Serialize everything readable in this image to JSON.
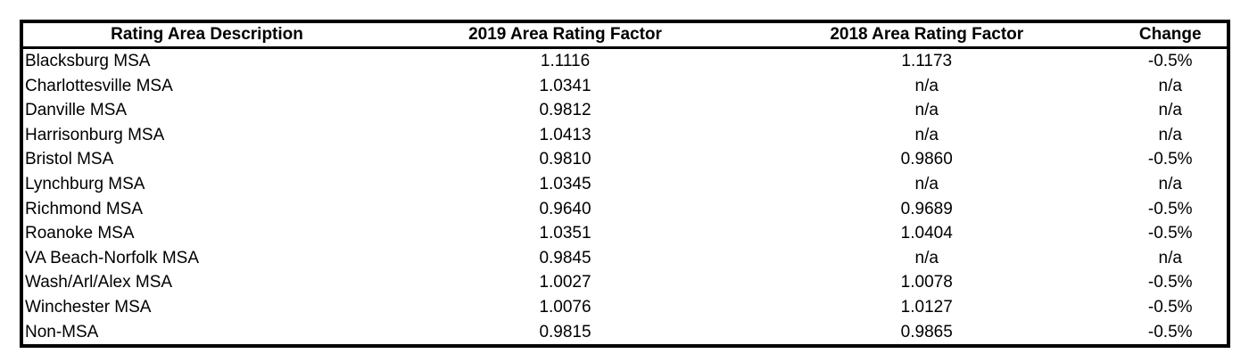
{
  "colors": {
    "background": "#ffffff",
    "text": "#000000",
    "border": "#000000"
  },
  "table": {
    "columns": [
      "Rating Area Description",
      "2019 Area Rating Factor",
      "2018 Area Rating Factor",
      "Change"
    ],
    "rows": [
      [
        "Blacksburg MSA",
        "1.1116",
        "1.1173",
        "-0.5%"
      ],
      [
        "Charlottesville MSA",
        "1.0341",
        "n/a",
        "n/a"
      ],
      [
        "Danville MSA",
        "0.9812",
        "n/a",
        "n/a"
      ],
      [
        "Harrisonburg MSA",
        "1.0413",
        "n/a",
        "n/a"
      ],
      [
        "Bristol MSA",
        "0.9810",
        "0.9860",
        "-0.5%"
      ],
      [
        "Lynchburg MSA",
        "1.0345",
        "n/a",
        "n/a"
      ],
      [
        "Richmond MSA",
        "0.9640",
        "0.9689",
        "-0.5%"
      ],
      [
        "Roanoke MSA",
        "1.0351",
        "1.0404",
        "-0.5%"
      ],
      [
        "VA Beach-Norfolk MSA",
        "0.9845",
        "n/a",
        "n/a"
      ],
      [
        "Wash/Arl/Alex MSA",
        "1.0027",
        "1.0078",
        "-0.5%"
      ],
      [
        "Winchester MSA",
        "1.0076",
        "1.0127",
        "-0.5%"
      ],
      [
        "Non-MSA",
        "0.9815",
        "0.9865",
        "-0.5%"
      ]
    ]
  }
}
